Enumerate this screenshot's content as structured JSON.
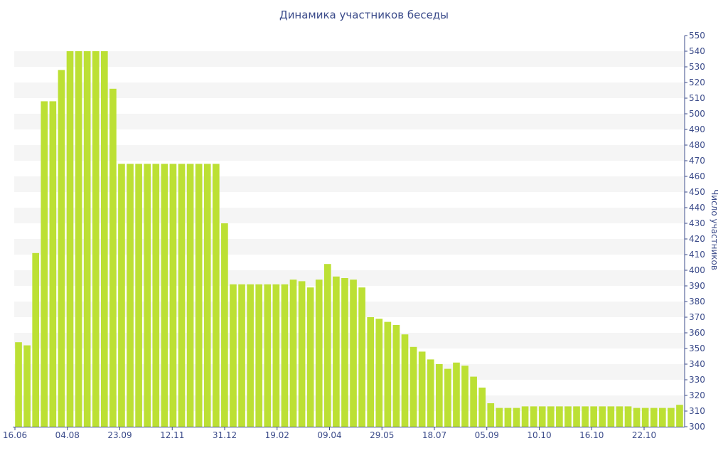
{
  "chart_data": {
    "type": "bar",
    "title": "Динамика участников беседы",
    "ylabel": "Число участников",
    "ylim": [
      300,
      550
    ],
    "ytick_step": 10,
    "grid": "alternating horizontal bands",
    "bar_color": "#bce034",
    "band_color": "#f5f5f5",
    "text_color": "#3b4b8a",
    "axis_color": "#3b4b8a",
    "xtick_labels": [
      "16.06",
      "04.08",
      "23.09",
      "12.11",
      "31.12",
      "19.02",
      "09.04",
      "29.05",
      "18.07",
      "05.09",
      "10.10",
      "16.10",
      "22.10"
    ],
    "values": [
      354,
      352,
      411,
      508,
      508,
      528,
      540,
      540,
      540,
      540,
      540,
      516,
      468,
      468,
      468,
      468,
      468,
      468,
      468,
      468,
      468,
      468,
      468,
      468,
      430,
      391,
      391,
      391,
      391,
      391,
      391,
      391,
      394,
      393,
      389,
      394,
      404,
      396,
      395,
      394,
      389,
      370,
      369,
      367,
      365,
      359,
      351,
      348,
      343,
      340,
      337,
      341,
      339,
      332,
      325,
      315,
      312,
      312,
      312,
      313,
      313,
      313,
      313,
      313,
      313,
      313,
      313,
      313,
      313,
      313,
      313,
      313,
      312,
      312,
      312,
      312,
      312,
      314
    ]
  }
}
